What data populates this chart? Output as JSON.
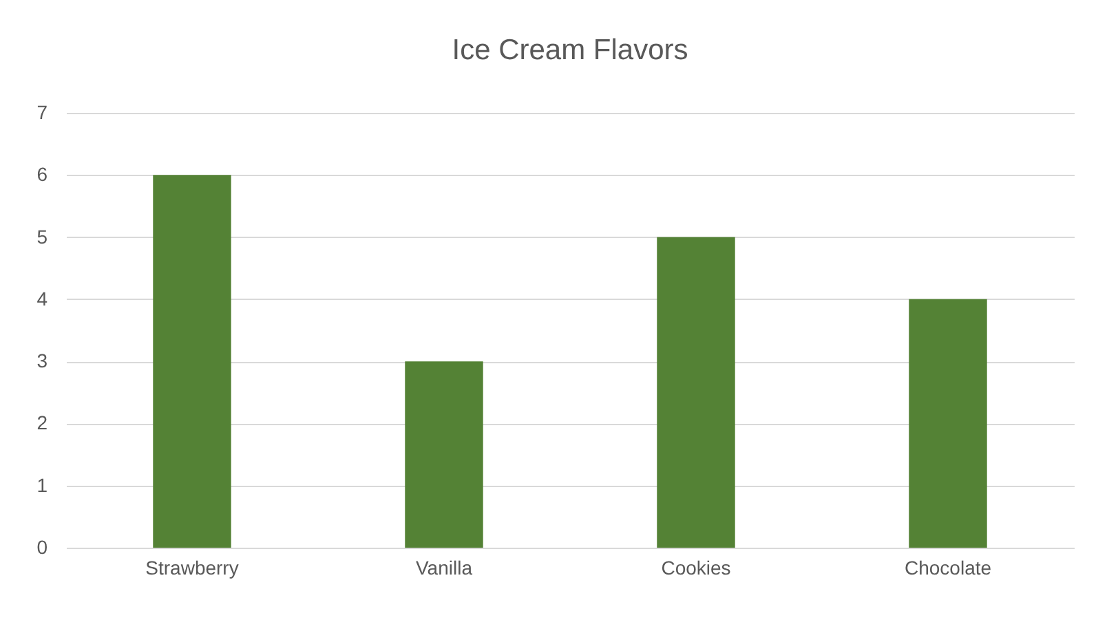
{
  "chart_data": {
    "type": "bar",
    "title": "Ice Cream Flavors",
    "categories": [
      "Strawberry",
      "Vanilla",
      "Cookies",
      "Chocolate"
    ],
    "values": [
      6,
      3,
      5,
      4
    ],
    "color": "#548235",
    "ylim": [
      0,
      7
    ],
    "yticks": [
      0,
      1,
      2,
      3,
      4,
      5,
      6,
      7
    ],
    "grid": "y"
  }
}
